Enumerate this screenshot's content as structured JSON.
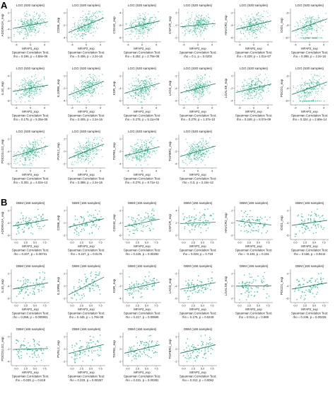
{
  "panels": [
    {
      "letter": "A",
      "cohort": "LGG (530 samples)"
    },
    {
      "letter": "B",
      "cohort": "GBM (166 samples)"
    }
  ],
  "colors": {
    "points": "#2db888",
    "fit": "#1f7a52",
    "axis": "#666666",
    "text": "#222222"
  },
  "chart_data": [
    {
      "panel": "A",
      "type": "scatter",
      "title": "LGG (530 samples)",
      "xlabel": "MFAP2_exp",
      "test_label": "Spearman Correlation Test:",
      "subplots": [
        {
          "ylabel": "ADORA2A_exp",
          "stat": "rho = 0.196, p = 4.58e-06",
          "slope": 0.16,
          "xticks": [
            "-4",
            "0",
            "4"
          ],
          "yticks": [
            "-5",
            "-4",
            "-3",
            "-2"
          ]
        },
        {
          "ylabel": "CD86_exp",
          "stat": "rho = 0.406, p = 2.2e-16",
          "slope": 0.35,
          "xticks": [
            "-4",
            "0",
            "4"
          ],
          "yticks": [
            "-4",
            "-2",
            "0"
          ]
        },
        {
          "ylabel": "CD244_exp",
          "stat": "rho = 0.252, p = 2.79e-08",
          "slope": 0.2,
          "xticks": [
            "-4",
            "0",
            "4"
          ],
          "yticks": [
            "-8",
            "-6",
            "-4"
          ]
        },
        {
          "ylabel": "CSF1R_exp",
          "stat": "rho = 0.1, p = 0.0202",
          "slope": 0.08,
          "xticks": [
            "-4",
            "0",
            "4"
          ],
          "yticks": [
            "-2",
            "0",
            "2"
          ]
        },
        {
          "ylabel": "HAVCR2_exp",
          "stat": "rho = 0.229, p = 1.01e-07",
          "slope": 0.2,
          "xticks": [
            "-4",
            "0",
            "4"
          ],
          "yticks": [
            "-6",
            "-4",
            "-2"
          ]
        },
        {
          "ylabel": "IDO1_exp",
          "stat": "rho = 0.286, p = 2.2e-16",
          "slope": 0.3,
          "xticks": [
            "-4",
            "0",
            "4"
          ],
          "yticks": [
            "-10",
            "-8",
            "-6"
          ],
          "floor": true
        },
        {
          "ylabel": "IL10_exp",
          "stat": "rho = 0.175, p = 5.25e-05",
          "slope": 0.15,
          "xticks": [
            "-4",
            "0",
            "4"
          ],
          "yticks": [
            "-8",
            "-6",
            "-4"
          ]
        },
        {
          "ylabel": "IL10RB_exp",
          "stat": "rho = 0.405, p = 2.2e-16",
          "slope": 0.33,
          "xticks": [
            "-4",
            "0",
            "4"
          ],
          "yticks": [
            "-4",
            "-2",
            "0"
          ]
        },
        {
          "ylabel": "KDR_exp",
          "stat": "rho = 0.275, p = 5.11e-09",
          "slope": 0.24,
          "xticks": [
            "-4",
            "0",
            "4"
          ],
          "yticks": [
            "-6",
            "-4",
            "-2"
          ]
        },
        {
          "ylabel": "LAG3_exp",
          "stat": "rho = 0.278, p = 1.37e-10",
          "slope": 0.22,
          "xticks": [
            "-4",
            "0",
            "4"
          ],
          "yticks": [
            "-6",
            "-4",
            "-2"
          ]
        },
        {
          "ylabel": "LGALS9_exp",
          "stat": "rho = 0.248, p = 8.07e-09",
          "slope": 0.2,
          "xticks": [
            "-4",
            "0",
            "4"
          ],
          "yticks": [
            "-4",
            "-2",
            "0"
          ]
        },
        {
          "ylabel": "PDCD1_exp",
          "stat": "rho = 0.324, p = 2.69e-14",
          "slope": 0.3,
          "xticks": [
            "-4",
            "0",
            "4"
          ],
          "yticks": [
            "-10",
            "-8",
            "-6"
          ],
          "floor": true
        },
        {
          "ylabel": "PDCD1LG2_exp",
          "stat": "rho = 0.301, p = 4.02e-13",
          "slope": 0.25,
          "xticks": [
            "-4",
            "0",
            "4"
          ],
          "yticks": [
            "-6",
            "-4",
            "-2"
          ]
        },
        {
          "ylabel": "PVRL2_exp",
          "stat": "rho = 0.388, p = 2.2e-16",
          "slope": 0.34,
          "xticks": [
            "-4",
            "0",
            "4"
          ],
          "yticks": [
            "-2",
            "0",
            "2"
          ]
        },
        {
          "ylabel": "TGFB1_exp",
          "stat": "rho = 0.276, p = 8.71e-11",
          "slope": 0.22,
          "xticks": [
            "-4",
            "0",
            "4"
          ],
          "yticks": [
            "-4",
            "-2",
            "0"
          ]
        },
        {
          "ylabel": "TGFBR1_exp",
          "stat": "rho = 0.3, p = 2.24e-12",
          "slope": 0.25,
          "xticks": [
            "-4",
            "0",
            "4"
          ],
          "yticks": [
            "-4",
            "-2",
            "0"
          ]
        }
      ]
    },
    {
      "panel": "B",
      "type": "scatter",
      "title": "GBM (166 samples)",
      "xlabel": "MFAP2_exp",
      "test_label": "Spearman Correlation Test:",
      "subplots": [
        {
          "ylabel": "ADORA2A_exp",
          "stat": "rho = 0.207, p = 0.00741",
          "slope": 0.15,
          "xticks": [
            "0.0",
            "2.5",
            "5.0",
            "7.5"
          ],
          "yticks": [
            "-6",
            "-4",
            "-2"
          ]
        },
        {
          "ylabel": "CD86_exp",
          "stat": "rho = 0.227, p = 0.0176",
          "slope": 0.2,
          "xticks": [
            "0.0",
            "2.5",
            "5.0",
            "7.5"
          ],
          "yticks": [
            "-2",
            "0",
            "2"
          ]
        },
        {
          "ylabel": "CD244_exp",
          "stat": "rho = 0.226, p = 0.00292",
          "slope": 0.18,
          "xticks": [
            "0.0",
            "2.5",
            "5.0",
            "7.5"
          ],
          "yticks": [
            "-6",
            "-4",
            "-2"
          ]
        },
        {
          "ylabel": "CSF1R_exp",
          "stat": "rho = 0.028, p = 0.719",
          "slope": 0.03,
          "xticks": [
            "0.0",
            "2.5",
            "5.0",
            "7.5"
          ],
          "yticks": [
            "0",
            "2",
            "4"
          ]
        },
        {
          "ylabel": "HAVCR2_exp",
          "stat": "rho = -0.103, p = 0.191",
          "slope": -0.1,
          "xticks": [
            "0.0",
            "2.5",
            "5.0",
            "7.5"
          ],
          "yticks": [
            "-2",
            "0",
            "2"
          ]
        },
        {
          "ylabel": "IDO1_exp",
          "stat": "rho = 0.156, p = 0.0442",
          "slope": 0.12,
          "xticks": [
            "0.0",
            "2.5",
            "5.0",
            "7.5"
          ],
          "yticks": [
            "-6",
            "-4",
            "-2"
          ]
        },
        {
          "ylabel": "IL10_exp",
          "stat": "rho = 0.256, p = 0.000901",
          "slope": 0.15,
          "xticks": [
            "0.0",
            "2.5",
            "5.0",
            "7.5"
          ],
          "yticks": [
            "-6",
            "-4",
            "-2"
          ]
        },
        {
          "ylabel": "IL10RB_exp",
          "stat": "rho = 0.445, p = 1.79e-09",
          "slope": 0.42,
          "xticks": [
            "0.0",
            "2.5",
            "5.0",
            "7.5"
          ],
          "yticks": [
            "-2",
            "0",
            "2"
          ]
        },
        {
          "ylabel": "KDR_exp",
          "stat": "rho = 0.217, p = 0.00506",
          "slope": 0.18,
          "xticks": [
            "0.0",
            "2.5",
            "5.0",
            "7.5"
          ],
          "yticks": [
            "-4",
            "-2",
            "0"
          ]
        },
        {
          "ylabel": "LAG3_exp",
          "stat": "rho = 0.175, p = 0.0249",
          "slope": 0.16,
          "xticks": [
            "0.0",
            "2.5",
            "5.0",
            "7.5"
          ],
          "yticks": [
            "-6",
            "-4",
            "-2"
          ]
        },
        {
          "ylabel": "LGALS9_exp",
          "stat": "rho = 0.013, p = 0.869",
          "slope": 0.01,
          "xticks": [
            "0.0",
            "2.5",
            "5.0",
            "7.5"
          ],
          "yticks": [
            "-2",
            "0",
            "2"
          ]
        },
        {
          "ylabel": "PDCD1_exp",
          "stat": "rho = 0.236, p = 0.00226",
          "slope": 0.15,
          "xticks": [
            "0.0",
            "2.5",
            "5.0",
            "7.5"
          ],
          "yticks": [
            "-6",
            "-4",
            "-2"
          ]
        },
        {
          "ylabel": "PDCD1LG2_exp",
          "stat": "rho = 0.039, p = 0.618",
          "slope": 0.02,
          "xticks": [
            "0.0",
            "2.5",
            "5.0",
            "7.5"
          ],
          "yticks": [
            "-4",
            "-2",
            "0"
          ]
        },
        {
          "ylabel": "PVRL2_exp",
          "stat": "rho = 0.233, p = 0.00257",
          "slope": 0.22,
          "xticks": [
            "0.0",
            "2.5",
            "5.0",
            "7.5"
          ],
          "yticks": [
            "-2",
            "0",
            "2"
          ]
        },
        {
          "ylabel": "TGFB1_exp",
          "stat": "rho = 0.231, p = 0.00281",
          "slope": 0.2,
          "xticks": [
            "0.0",
            "2.5",
            "5.0",
            "7.5"
          ],
          "yticks": [
            "-2",
            "0",
            "2"
          ]
        },
        {
          "ylabel": "TGFBR1_exp",
          "stat": "rho = 0.212, p = 0.0062",
          "slope": 0.2,
          "xticks": [
            "0.0",
            "2.5",
            "5.0",
            "7.5"
          ],
          "yticks": [
            "-2",
            "0",
            "2"
          ]
        }
      ]
    }
  ]
}
